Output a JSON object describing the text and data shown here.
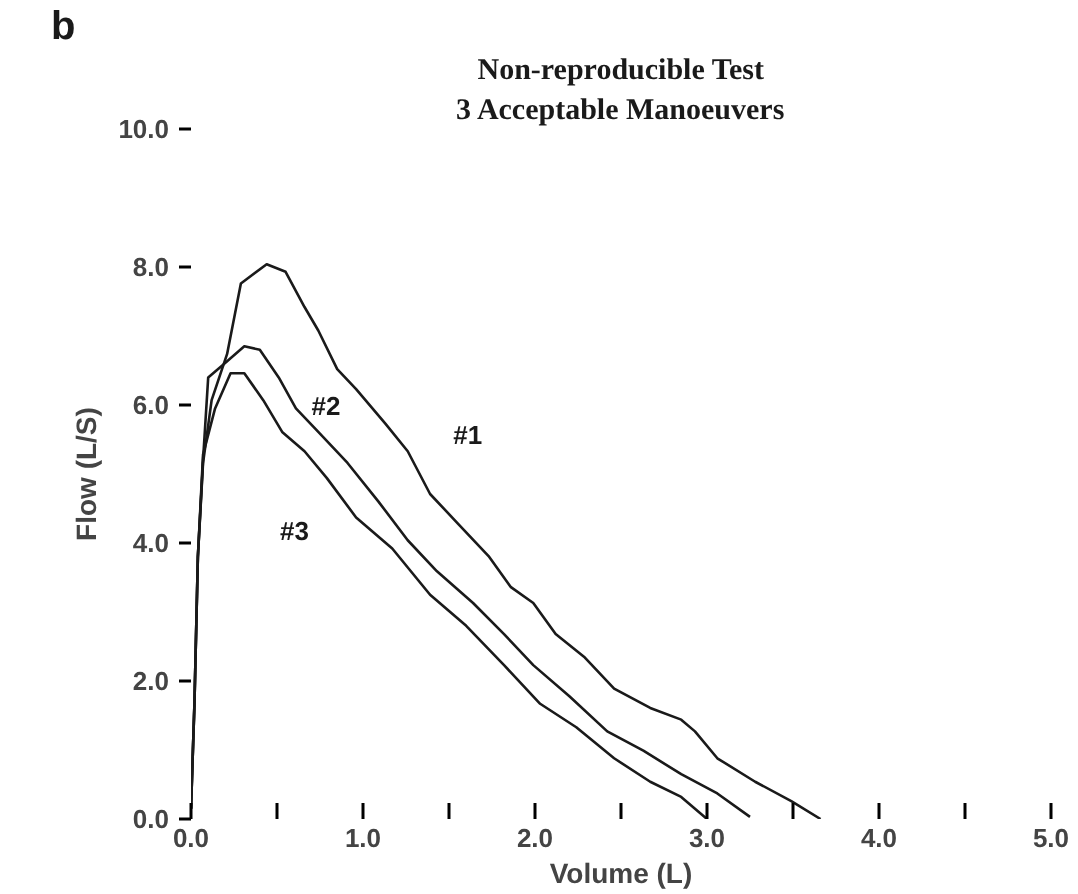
{
  "chart_data": {
    "type": "line",
    "title": "Non-reproducible Test",
    "subtitle": "3 Acceptable Manoeuvers",
    "xlabel": "Volume (L)",
    "ylabel": "Flow (L/S)",
    "xlim": [
      0,
      5
    ],
    "ylim": [
      0,
      10
    ],
    "xticks": [
      {
        "value": 0,
        "label": "0.0"
      },
      {
        "value": 0.5,
        "label": null
      },
      {
        "value": 1,
        "label": "1.0"
      },
      {
        "value": 1.5,
        "label": null
      },
      {
        "value": 2,
        "label": "2.0"
      },
      {
        "value": 2.5,
        "label": null
      },
      {
        "value": 3,
        "label": "3.0"
      },
      {
        "value": 3.5,
        "label": null
      },
      {
        "value": 4,
        "label": "4.0"
      },
      {
        "value": 4.5,
        "label": null
      },
      {
        "value": 5,
        "label": "5.0"
      }
    ],
    "yticks": [
      {
        "value": 0,
        "label": "0.0"
      },
      {
        "value": 2,
        "label": "2.0"
      },
      {
        "value": 4,
        "label": "4.0"
      },
      {
        "value": 6,
        "label": "6.0"
      },
      {
        "value": 8,
        "label": "8.0"
      },
      {
        "value": 10,
        "label": "10.0"
      }
    ],
    "grid": false,
    "marker": "none",
    "line_style": "solid",
    "series": [
      {
        "name": "#1",
        "color": "#1a1a1a",
        "x": [
          0.0,
          0.02,
          0.04,
          0.07,
          0.12,
          0.21,
          0.29,
          0.44,
          0.55,
          0.66,
          0.74,
          0.85,
          0.96,
          1.13,
          1.26,
          1.39,
          1.56,
          1.73,
          1.86,
          1.99,
          2.12,
          2.29,
          2.46,
          2.67,
          2.85,
          2.93,
          3.06,
          3.28,
          3.49,
          3.66
        ],
        "values": [
          0.15,
          1.67,
          3.8,
          5.16,
          6.07,
          6.74,
          7.76,
          8.04,
          7.93,
          7.42,
          7.08,
          6.52,
          6.23,
          5.73,
          5.33,
          4.71,
          4.26,
          3.81,
          3.36,
          3.13,
          2.68,
          2.34,
          1.89,
          1.61,
          1.44,
          1.27,
          0.88,
          0.54,
          0.26,
          0
        ]
      },
      {
        "name": "#2",
        "color": "#1a1a1a",
        "x": [
          0.0,
          0.02,
          0.04,
          0.07,
          0.1,
          0.18,
          0.31,
          0.4,
          0.51,
          0.61,
          0.74,
          0.91,
          1.09,
          1.26,
          1.43,
          1.64,
          1.82,
          1.99,
          2.2,
          2.42,
          2.63,
          2.85,
          3.06,
          3.25
        ],
        "values": [
          0.15,
          1.67,
          3.8,
          5.2,
          6.4,
          6.57,
          6.85,
          6.8,
          6.4,
          5.95,
          5.61,
          5.16,
          4.6,
          4.04,
          3.59,
          3.13,
          2.68,
          2.23,
          1.78,
          1.27,
          0.99,
          0.65,
          0.37,
          0.03
        ]
      },
      {
        "name": "#3",
        "color": "#1a1a1a",
        "x": [
          0.0,
          0.02,
          0.04,
          0.07,
          0.14,
          0.23,
          0.31,
          0.42,
          0.53,
          0.66,
          0.79,
          0.96,
          1.17,
          1.39,
          1.6,
          1.82,
          2.03,
          2.24,
          2.46,
          2.67,
          2.85,
          3.0
        ],
        "values": [
          0.15,
          1.67,
          3.8,
          5.28,
          5.95,
          6.46,
          6.46,
          6.07,
          5.61,
          5.33,
          4.94,
          4.37,
          3.92,
          3.25,
          2.8,
          2.23,
          1.67,
          1.33,
          0.88,
          0.54,
          0.32,
          0
        ]
      }
    ],
    "annotations": [
      "b"
    ]
  }
}
